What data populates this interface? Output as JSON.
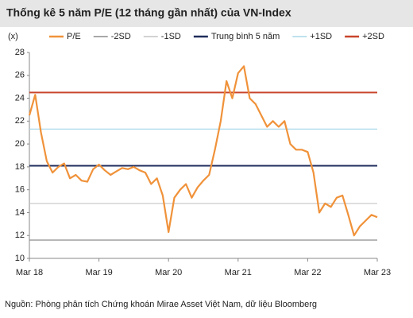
{
  "chart_data": {
    "type": "line",
    "title": "Thống kê 5 năm P/E (12 tháng gần nhất) của VN-Index",
    "y_label": "(x)",
    "source": "Nguồn: Phòng phân tích Chứng khoán Mirae Asset Việt Nam, dữ liệu Bloomberg",
    "categories": [
      "Mar 18",
      null,
      null,
      null,
      null,
      null,
      null,
      null,
      null,
      null,
      null,
      null,
      "Mar 19",
      null,
      null,
      null,
      null,
      null,
      null,
      null,
      null,
      null,
      null,
      null,
      "Mar 20",
      null,
      null,
      null,
      null,
      null,
      null,
      null,
      null,
      null,
      null,
      null,
      "Mar 21",
      null,
      null,
      null,
      null,
      null,
      null,
      null,
      null,
      null,
      null,
      null,
      "Mar 22",
      null,
      null,
      null,
      null,
      null,
      null,
      null,
      null,
      null,
      null,
      null,
      "Mar 23"
    ],
    "series": [
      {
        "name": "P/E",
        "color": "#f0923a",
        "values": [
          22.5,
          24.3,
          21,
          18.5,
          17.5,
          18,
          18.3,
          17,
          17.3,
          16.8,
          16.7,
          17.8,
          18.2,
          17.7,
          17.3,
          17.6,
          17.9,
          17.8,
          18,
          17.7,
          17.5,
          16.5,
          17,
          15.5,
          12.3,
          15.3,
          16,
          16.5,
          15.3,
          16.2,
          16.8,
          17.3,
          19.5,
          22,
          25.5,
          24,
          26.2,
          26.8,
          24,
          23.5,
          22.5,
          21.5,
          22,
          21.5,
          22,
          20,
          19.5,
          19.5,
          19.3,
          17.5,
          14,
          14.8,
          14.5,
          15.3,
          15.5,
          13.8,
          12,
          12.8,
          13.3,
          13.8,
          13.6
        ]
      }
    ],
    "reference_lines": [
      {
        "name": "-2SD",
        "color": "#8c8c8c",
        "value": 11.6
      },
      {
        "name": "-1SD",
        "color": "#c4c4c4",
        "value": 14.8
      },
      {
        "name": "Trung bình 5 năm",
        "color": "#1f2d5c",
        "value": 18.1
      },
      {
        "name": "+1SD",
        "color": "#a9d8ea",
        "value": 21.3
      },
      {
        "name": "+2SD",
        "color": "#c8452c",
        "value": 24.5
      }
    ],
    "ylim": [
      10,
      28
    ],
    "yticks": [
      10,
      12,
      14,
      16,
      18,
      20,
      22,
      24,
      26,
      28
    ],
    "grid": false
  }
}
